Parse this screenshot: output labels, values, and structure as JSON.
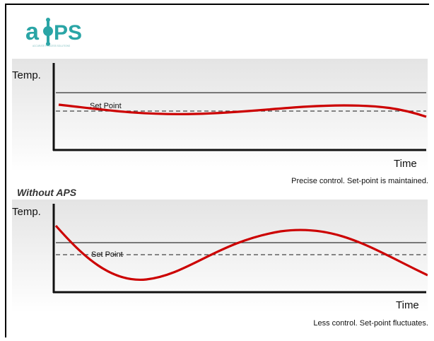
{
  "logo": {
    "text_a": "a",
    "text_ps": "PS",
    "tagline": "ACCURATE PROCESS SOLUTIONS",
    "color": "#2aa5a6"
  },
  "with_aps": {
    "y_label": "Temp.",
    "x_label": "Time",
    "setpoint_label": "Set Point",
    "caption": "Precise control. Set-point is maintained."
  },
  "without_aps": {
    "heading": "Without APS",
    "y_label": "Temp.",
    "x_label": "Time",
    "setpoint_label": "Set Point",
    "caption": "Less control. Set-point fluctuates."
  },
  "colors": {
    "curve": "#cc0000",
    "panel_top": "#ececec",
    "panel_bottom": "#ffffff"
  }
}
